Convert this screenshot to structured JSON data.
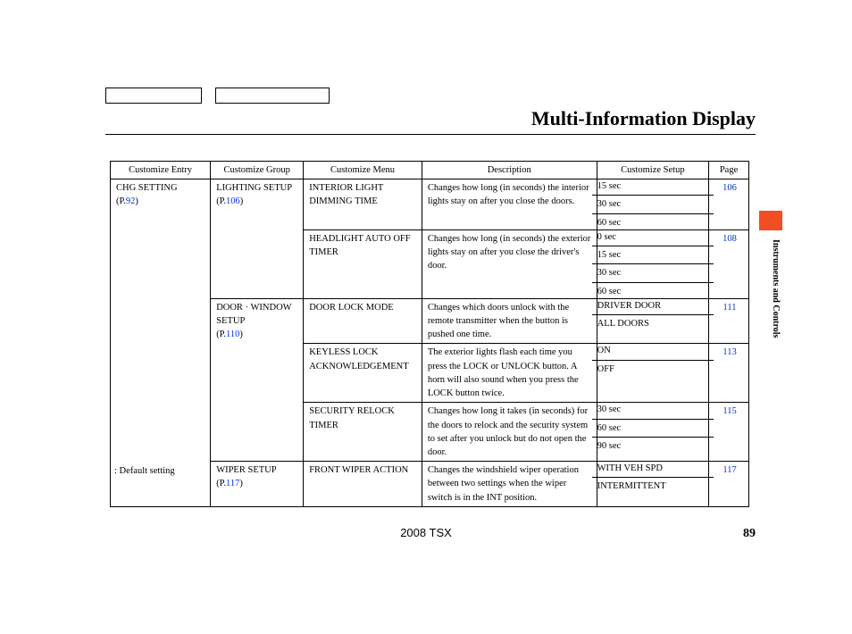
{
  "title": "Multi-Information Display",
  "section_tab_color": "#f14e23",
  "section_label": "Instruments and Controls",
  "footer_note": ": Default setting",
  "footer_model": "2008 TSX",
  "footer_page": "89",
  "link_color": "#0033cc",
  "columns": [
    "Customize Entry",
    "Customize Group",
    "Customize Menu",
    "Description",
    "Customize Setup",
    "Page"
  ],
  "entry": {
    "label": "CHG SETTING",
    "page_ref_prefix": "(P.",
    "page_ref": "92",
    "page_ref_suffix": ")"
  },
  "groups": [
    {
      "label": "LIGHTING SETUP",
      "page_ref_prefix": "(P.",
      "page_ref": "106",
      "page_ref_suffix": ")",
      "menus": [
        {
          "label_line1": "INTERIOR LIGHT",
          "label_line2": "DIMMING TIME",
          "description": "Changes how long (in seconds) the interior lights stay on after you close the doors.",
          "setup": [
            "15 sec",
            "30 sec",
            "60 sec"
          ],
          "page": "106"
        },
        {
          "label_line1": "HEADLIGHT AUTO OFF",
          "label_line2": "TIMER",
          "description": "Changes how long (in seconds) the exterior lights stay on after you close the driver's door.",
          "setup": [
            "0 sec",
            "15 sec",
            "30 sec",
            "60 sec"
          ],
          "page": "108"
        }
      ]
    },
    {
      "label_line1": "DOOR · WINDOW",
      "label_line2": "SETUP",
      "page_ref_prefix": "(P.",
      "page_ref": "110",
      "page_ref_suffix": ")",
      "menus": [
        {
          "label_line1": "DOOR LOCK MODE",
          "description": "Changes which doors unlock with the remote transmitter when the button is pushed one time.",
          "setup": [
            "DRIVER DOOR",
            "ALL DOORS"
          ],
          "page": "111"
        },
        {
          "label_line1": "KEYLESS LOCK",
          "label_line2": "ACKNOWLEDGEMENT",
          "description": "The exterior lights flash each time you press the LOCK or UNLOCK button. A horn will also sound when you press the LOCK button twice.",
          "setup": [
            "ON",
            "OFF"
          ],
          "page": "113"
        },
        {
          "label_line1": "SECURITY RELOCK",
          "label_line2": "TIMER",
          "description": "Changes how long it takes (in seconds) for the doors to relock and the security system to set after you unlock but do not open the door.",
          "setup": [
            "30 sec",
            "60 sec",
            "90 sec"
          ],
          "page": "115"
        }
      ]
    },
    {
      "label": "WIPER SETUP",
      "page_ref_prefix": "(P.",
      "page_ref": "117",
      "page_ref_suffix": ")",
      "menus": [
        {
          "label_line1": "FRONT WIPER ACTION",
          "description": "Changes the windshield wiper operation between two settings when the wiper switch is in the INT position.",
          "setup": [
            "WITH VEH SPD",
            "INTERMITTENT"
          ],
          "page": "117"
        }
      ]
    }
  ]
}
